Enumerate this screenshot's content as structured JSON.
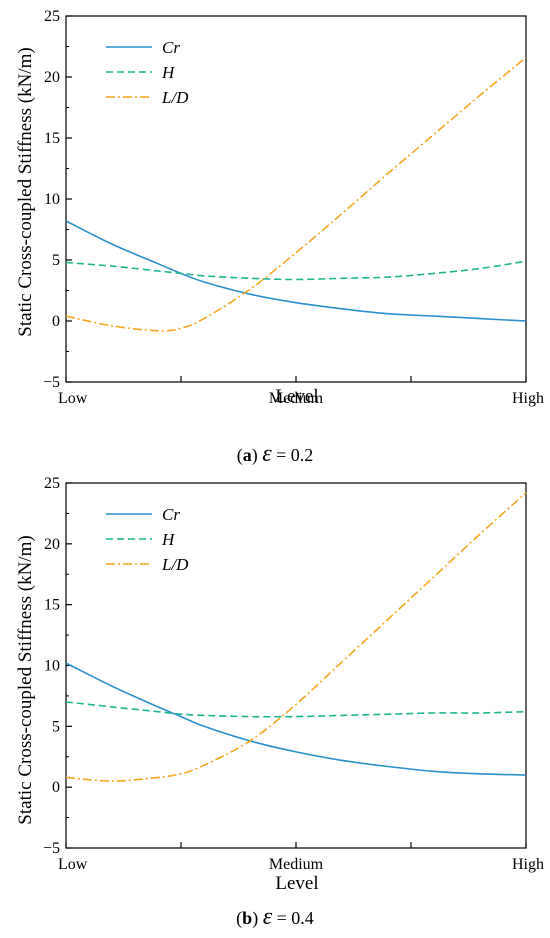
{
  "colors": {
    "Cr": "#2a8fcc",
    "H": "#1fb58f",
    "L/D": "#f5a623",
    "axis": "#000000"
  },
  "chart_data": [
    {
      "type": "line",
      "caption": {
        "label": "a",
        "symbol": "ε",
        "value_text": "= 0.2"
      },
      "xlabel": "Level",
      "ylabel": "Static Cross-coupled Stiffness (kN/m)",
      "x_ticks": [
        "Low",
        "Medium",
        "High"
      ],
      "ylim": [
        -5,
        25
      ],
      "y_ticks": [
        -5,
        0,
        5,
        10,
        15,
        20,
        25
      ],
      "x": [
        0,
        0.1,
        0.2,
        0.25,
        0.3,
        0.4,
        0.5,
        0.6,
        0.7,
        0.8,
        0.9,
        1.0
      ],
      "legend_position": "top-left",
      "series": [
        {
          "name": "Cr",
          "style": "solid",
          "values": [
            8.2,
            6.3,
            4.7,
            3.9,
            3.2,
            2.2,
            1.5,
            1.0,
            0.6,
            0.4,
            0.2,
            0.0
          ]
        },
        {
          "name": "H",
          "style": "dashed",
          "values": [
            4.8,
            4.5,
            4.1,
            3.9,
            3.7,
            3.5,
            3.4,
            3.5,
            3.6,
            3.9,
            4.3,
            4.9
          ]
        },
        {
          "name": "L/D",
          "style": "dashdot",
          "values": [
            0.4,
            -0.4,
            -0.8,
            -0.6,
            0.2,
            2.6,
            5.6,
            8.8,
            12.1,
            15.3,
            18.5,
            21.6
          ]
        }
      ]
    },
    {
      "type": "line",
      "caption": {
        "label": "b",
        "symbol": "ε",
        "value_text": "= 0.4"
      },
      "xlabel": "Level",
      "ylabel": "Static Cross-coupled Stiffness (kN/m)",
      "x_ticks": [
        "Low",
        "Medium",
        "High"
      ],
      "ylim": [
        -5,
        25
      ],
      "y_ticks": [
        -5,
        0,
        5,
        10,
        15,
        20,
        25
      ],
      "x": [
        0,
        0.1,
        0.2,
        0.25,
        0.3,
        0.4,
        0.5,
        0.6,
        0.7,
        0.8,
        0.9,
        1.0
      ],
      "legend_position": "top-left",
      "series": [
        {
          "name": "Cr",
          "style": "solid",
          "values": [
            10.2,
            8.3,
            6.6,
            5.8,
            5.0,
            3.8,
            2.9,
            2.2,
            1.7,
            1.3,
            1.1,
            1.0
          ]
        },
        {
          "name": "H",
          "style": "dashed",
          "values": [
            7.0,
            6.6,
            6.2,
            6.0,
            5.9,
            5.8,
            5.8,
            5.9,
            6.0,
            6.1,
            6.1,
            6.2
          ]
        },
        {
          "name": "L/D",
          "style": "dashdot",
          "values": [
            0.8,
            0.5,
            0.8,
            1.1,
            1.8,
            3.8,
            6.8,
            10.3,
            13.8,
            17.3,
            20.8,
            24.2
          ]
        }
      ]
    }
  ]
}
